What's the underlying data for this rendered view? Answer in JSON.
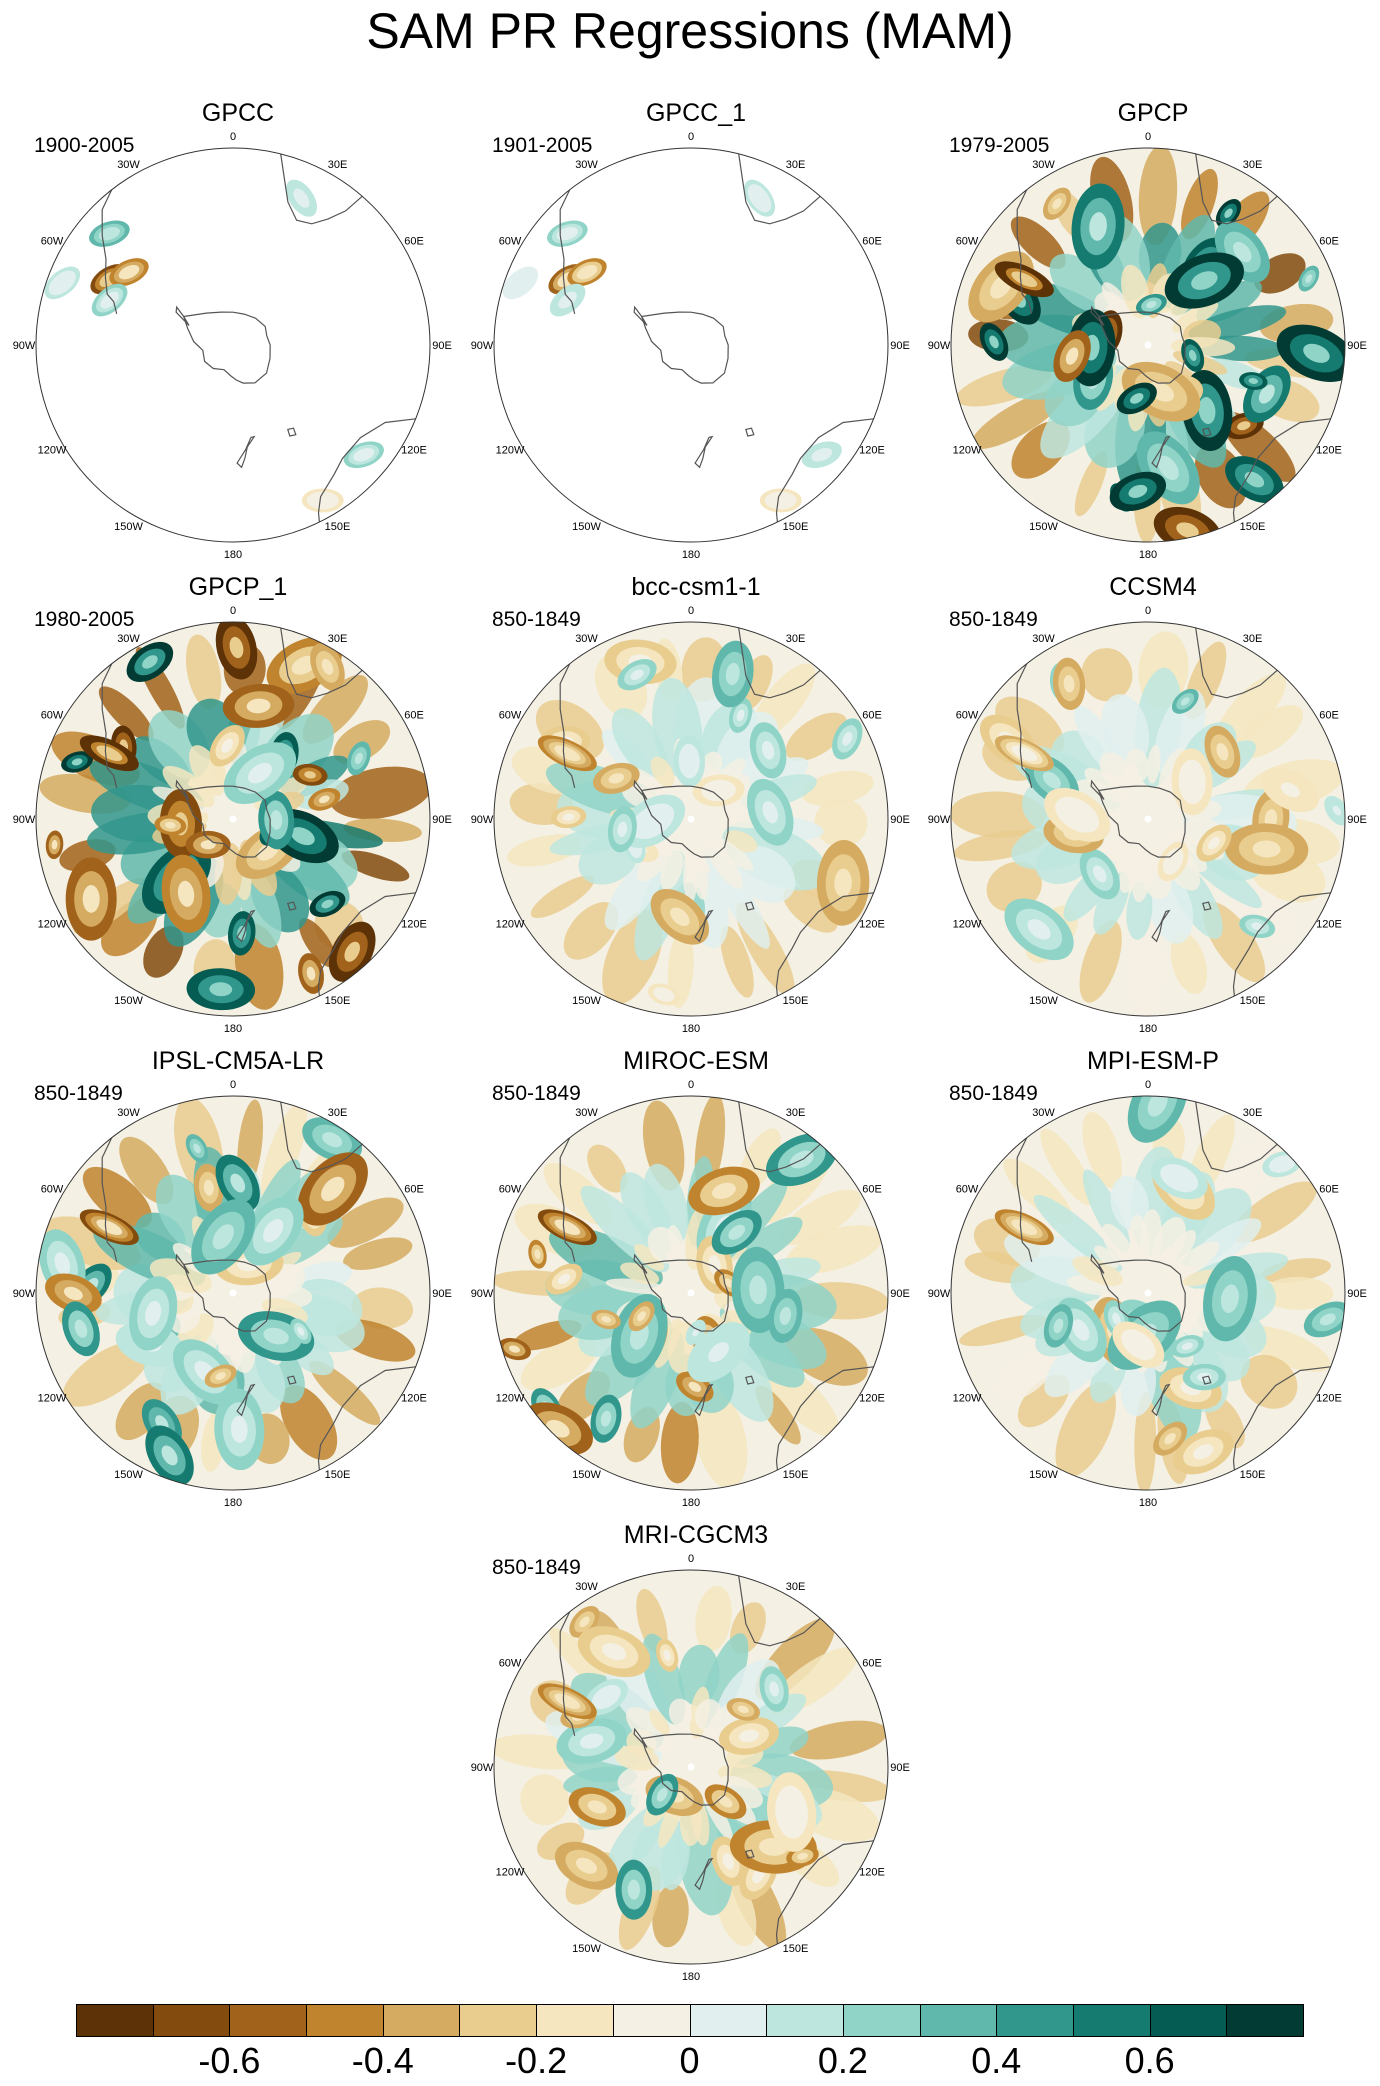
{
  "title": "SAM PR Regressions (MAM)",
  "lon_labels": {
    "n": "0",
    "nne": "30E",
    "ene": "60E",
    "e": "90E",
    "ese": "120E",
    "sse": "150E",
    "s": "180",
    "ssw": "150W",
    "wsw": "120W",
    "w": "90W",
    "wnw": "60W",
    "nnw": "30W"
  },
  "panels": [
    {
      "name": "GPCC",
      "period": "1900-2005",
      "amplitude": 0.3,
      "coverage": "land"
    },
    {
      "name": "GPCC_1",
      "period": "1901-2005",
      "amplitude": 0.25,
      "coverage": "land"
    },
    {
      "name": "GPCP",
      "period": "1979-2005",
      "amplitude": 0.9,
      "coverage": "full"
    },
    {
      "name": "GPCP_1",
      "period": "1980-2005",
      "amplitude": 0.9,
      "coverage": "full"
    },
    {
      "name": "bcc-csm1-1",
      "period": "850-1849",
      "amplitude": 0.4,
      "coverage": "full"
    },
    {
      "name": "CCSM4",
      "period": "850-1849",
      "amplitude": 0.35,
      "coverage": "full"
    },
    {
      "name": "IPSL-CM5A-LR",
      "period": "850-1849",
      "amplitude": 0.6,
      "coverage": "full"
    },
    {
      "name": "MIROC-ESM",
      "period": "850-1849",
      "amplitude": 0.55,
      "coverage": "full"
    },
    {
      "name": "MPI-ESM-P",
      "period": "850-1849",
      "amplitude": 0.4,
      "coverage": "full"
    },
    {
      "name": "MRI-CGCM3",
      "period": "850-1849",
      "amplitude": 0.45,
      "coverage": "full"
    }
  ],
  "colorbar": {
    "colors": [
      "#5c3206",
      "#834b0e",
      "#a1631b",
      "#c0842f",
      "#d5ab61",
      "#e9cd8f",
      "#f5e6c0",
      "#f4f0e3",
      "#e1f0ee",
      "#bde6df",
      "#90d4c8",
      "#5fb8ab",
      "#31968c",
      "#157a6f",
      "#045c52",
      "#013b33"
    ],
    "min": -0.8,
    "max": 0.8,
    "step": 0.1,
    "tick_labels": [
      "-0.6",
      "-0.4",
      "-0.2",
      "0",
      "0.2",
      "0.4",
      "0.6"
    ],
    "tick_values": [
      -0.6,
      -0.4,
      -0.2,
      0,
      0.2,
      0.4,
      0.6
    ]
  }
}
